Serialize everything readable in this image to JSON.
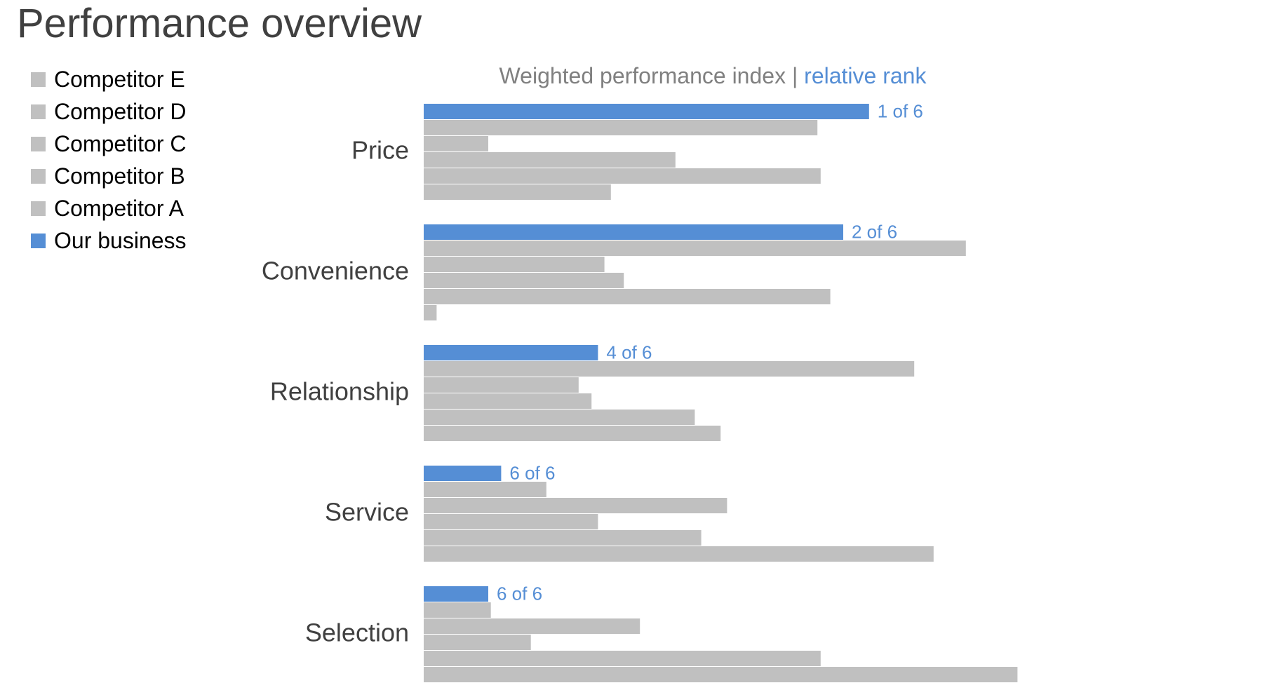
{
  "title": "Performance overview",
  "colors": {
    "highlight": "#558ED5",
    "others": "#C0C0C0"
  },
  "chart_data": {
    "type": "bar",
    "orientation": "horizontal",
    "title_parts": [
      {
        "text": "Weighted performance index | ",
        "color": "#808080"
      },
      {
        "text": "relative rank",
        "color": "#558ED5"
      }
    ],
    "categories": [
      "Price",
      "Convenience",
      "Relationship",
      "Service",
      "Selection"
    ],
    "series": [
      {
        "name": "Our business",
        "color": "#558ED5",
        "values": [
          69,
          65,
          27,
          12,
          10
        ],
        "labels": [
          "1 of 6",
          "2 of 6",
          "4 of 6",
          "6 of 6",
          "6 of 6"
        ]
      },
      {
        "name": "Competitor A",
        "color": "#C0C0C0",
        "values": [
          61,
          84,
          76,
          19,
          10.4
        ]
      },
      {
        "name": "Competitor B",
        "color": "#C0C0C0",
        "values": [
          10,
          28,
          24,
          47,
          33.5
        ]
      },
      {
        "name": "Competitor C",
        "color": "#C0C0C0",
        "values": [
          39,
          31,
          26,
          27,
          16.6
        ]
      },
      {
        "name": "Competitor D",
        "color": "#C0C0C0",
        "values": [
          61.5,
          63,
          42,
          43,
          61.5
        ]
      },
      {
        "name": "Competitor E",
        "color": "#C0C0C0",
        "values": [
          29,
          2,
          46,
          79,
          92
        ]
      }
    ],
    "legend_order": [
      "Competitor E",
      "Competitor D",
      "Competitor C",
      "Competitor B",
      "Competitor A",
      "Our business"
    ],
    "xlim": [
      0,
      100
    ],
    "grid": false,
    "legend_position": "left"
  }
}
